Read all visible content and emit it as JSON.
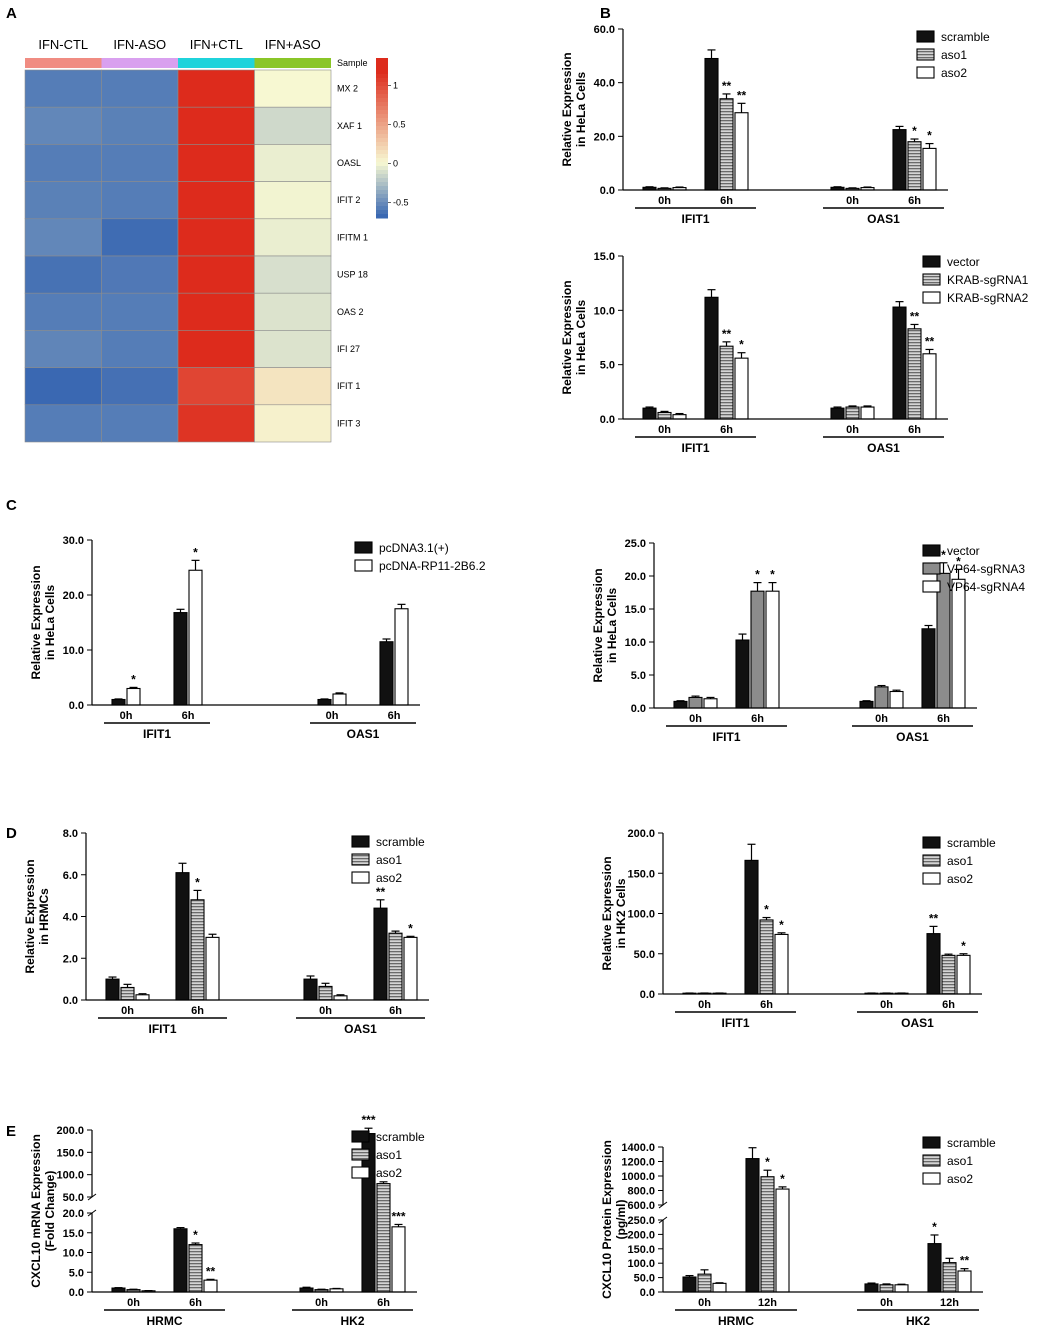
{
  "palette": {
    "black": "#111111",
    "gray_hatch": "#9a9a9a",
    "white": "#ffffff",
    "heat_low": "#3a68b2",
    "heat_mid": "#f7f8d2",
    "heat_high": "#dd2b1c"
  },
  "heatmap": {
    "panel": "A",
    "columns": [
      "IFN-CTL",
      "IFN-ASO",
      "IFN+CTL",
      "IFN+ASO"
    ],
    "sample_label": "Sample",
    "sample_colors": [
      "#f08c82",
      "#d9a0ef",
      "#1fd3db",
      "#8ac628"
    ],
    "rows": [
      "MX 2",
      "XAF 1",
      "OASL",
      "IFIT 2",
      "IFITM 1",
      "USP 18",
      "OAS 2",
      "IFI 27",
      "IFIT 1",
      "IFIT 3"
    ],
    "values": [
      [
        -0.6,
        -0.6,
        1.3,
        0.0
      ],
      [
        -0.55,
        -0.58,
        1.4,
        -0.15
      ],
      [
        -0.6,
        -0.6,
        1.35,
        -0.05
      ],
      [
        -0.58,
        -0.6,
        1.3,
        -0.02
      ],
      [
        -0.55,
        -0.68,
        1.25,
        -0.05
      ],
      [
        -0.65,
        -0.62,
        1.2,
        -0.12
      ],
      [
        -0.6,
        -0.6,
        1.35,
        -0.1
      ],
      [
        -0.56,
        -0.6,
        1.3,
        -0.1
      ],
      [
        -0.7,
        -0.66,
        1.05,
        0.12
      ],
      [
        -0.6,
        -0.6,
        1.15,
        0.04
      ]
    ],
    "colorbar_ticks": [
      "1",
      "0.5",
      "0",
      "-0.5"
    ]
  },
  "chart_data": [
    {
      "panel": "B",
      "type": "bar",
      "ylabel": [
        "Relative Expression",
        "in HeLa Cells"
      ],
      "ylim": [
        0,
        60
      ],
      "yticks": [
        "0.0",
        "20.0",
        "40.0",
        "60.0"
      ],
      "groups": [
        "IFIT1",
        "OAS1"
      ],
      "timepoints": [
        "0h",
        "6h",
        "0h",
        "6h"
      ],
      "series": [
        {
          "name": "scramble",
          "style": "black",
          "values": [
            1.0,
            49.0,
            1.0,
            22.5
          ],
          "errors": [
            0.2,
            3.2,
            0.2,
            1.2
          ]
        },
        {
          "name": "aso1",
          "style": "hatch",
          "values": [
            0.6,
            34.0,
            0.6,
            18.0
          ],
          "errors": [
            0.2,
            1.8,
            0.2,
            1.0
          ]
        },
        {
          "name": "aso2",
          "style": "white",
          "values": [
            0.9,
            28.8,
            0.9,
            15.5
          ],
          "errors": [
            0.2,
            3.5,
            0.2,
            1.8
          ]
        }
      ],
      "annotations": [
        "",
        "",
        "",
        "",
        "**",
        "**",
        "",
        "",
        "",
        "",
        "*",
        "*"
      ]
    },
    {
      "panel": "",
      "type": "bar",
      "ylabel": [
        "Relative Expression",
        "in HeLa Cells"
      ],
      "ylim": [
        0,
        15
      ],
      "yticks": [
        "0.0",
        "5.0",
        "10.0",
        "15.0"
      ],
      "groups": [
        "IFIT1",
        "OAS1"
      ],
      "timepoints": [
        "0h",
        "6h",
        "0h",
        "6h"
      ],
      "series": [
        {
          "name": "vector",
          "style": "black",
          "values": [
            1.0,
            11.2,
            1.0,
            10.3
          ],
          "errors": [
            0.1,
            0.7,
            0.1,
            0.5
          ]
        },
        {
          "name": "KRAB-sgRNA1",
          "style": "hatch",
          "values": [
            0.6,
            6.7,
            1.1,
            8.3
          ],
          "errors": [
            0.1,
            0.4,
            0.1,
            0.4
          ]
        },
        {
          "name": "KRAB-sgRNA2",
          "style": "white",
          "values": [
            0.4,
            5.6,
            1.1,
            6.0
          ],
          "errors": [
            0.1,
            0.5,
            0.1,
            0.4
          ]
        }
      ],
      "annotations": [
        "",
        "",
        "",
        "",
        "**",
        "*",
        "",
        "",
        "",
        "",
        "**",
        "**"
      ]
    },
    {
      "panel": "C",
      "type": "bar",
      "ylabel": [
        "Relative Expression",
        "in HeLa Cells"
      ],
      "ylim": [
        0,
        30
      ],
      "yticks": [
        "0.0",
        "10.0",
        "20.0",
        "30.0"
      ],
      "groups": [
        "IFIT1",
        "OAS1"
      ],
      "timepoints": [
        "0h",
        "6h",
        "0h",
        "6h"
      ],
      "series": [
        {
          "name": "pcDNA3.1(+)",
          "style": "black",
          "values": [
            1.0,
            16.8,
            1.0,
            11.5
          ],
          "errors": [
            0.1,
            0.6,
            0.1,
            0.5
          ]
        },
        {
          "name": "pcDNA-RP11-2B6.2",
          "style": "white",
          "values": [
            3.0,
            24.5,
            2.0,
            17.5
          ],
          "errors": [
            0.2,
            1.8,
            0.2,
            0.8
          ]
        }
      ],
      "annotations": [
        "",
        "*",
        "",
        "*"
      ]
    },
    {
      "panel": "",
      "type": "bar",
      "ylabel": [
        "Relative Expression",
        "in HeLa Cells"
      ],
      "ylim": [
        0,
        25
      ],
      "yticks": [
        "0.0",
        "5.0",
        "10.0",
        "15.0",
        "20.0",
        "25.0"
      ],
      "groups": [
        "IFIT1",
        "OAS1"
      ],
      "timepoints": [
        "0h",
        "6h",
        "0h",
        "6h"
      ],
      "series": [
        {
          "name": "vector",
          "style": "black",
          "values": [
            1.0,
            10.3,
            1.0,
            12.0
          ],
          "errors": [
            0.1,
            0.9,
            0.1,
            0.5
          ]
        },
        {
          "name": "VP64-sgRNA3",
          "style": "gray",
          "values": [
            1.6,
            17.7,
            3.2,
            20.4
          ],
          "errors": [
            0.2,
            1.3,
            0.2,
            1.6
          ]
        },
        {
          "name": "VP64-sgRNA4",
          "style": "white",
          "values": [
            1.4,
            17.7,
            2.5,
            19.5
          ],
          "errors": [
            0.2,
            1.3,
            0.2,
            1.5
          ]
        }
      ],
      "annotations": [
        "",
        "",
        "",
        "",
        "*",
        "*",
        "",
        "",
        "",
        "",
        "*",
        "*"
      ]
    },
    {
      "panel": "D",
      "type": "bar",
      "ylabel": [
        "Relative Expression",
        "in HRMCs"
      ],
      "ylim": [
        0,
        8
      ],
      "yticks": [
        "0.0",
        "2.0",
        "4.0",
        "6.0",
        "8.0"
      ],
      "groups": [
        "IFIT1",
        "OAS1"
      ],
      "timepoints": [
        "0h",
        "6h",
        "0h",
        "6h"
      ],
      "series": [
        {
          "name": "scramble",
          "style": "black",
          "values": [
            1.0,
            6.1,
            1.0,
            4.4
          ],
          "errors": [
            0.1,
            0.45,
            0.15,
            0.4
          ]
        },
        {
          "name": "aso1",
          "style": "hatch",
          "values": [
            0.6,
            4.8,
            0.65,
            3.2
          ],
          "errors": [
            0.15,
            0.45,
            0.15,
            0.1
          ]
        },
        {
          "name": "aso2",
          "style": "white",
          "values": [
            0.25,
            3.0,
            0.2,
            3.0
          ],
          "errors": [
            0.05,
            0.15,
            0.05,
            0.05
          ]
        }
      ],
      "annotations": [
        "",
        "",
        "",
        "",
        "*",
        "",
        "",
        "",
        "",
        "**",
        "",
        "*"
      ]
    },
    {
      "panel": "",
      "type": "bar",
      "ylabel": [
        "Relative Expression",
        "in HK2 Cells"
      ],
      "ylim": [
        0,
        200
      ],
      "yticks": [
        "0.0",
        "50.0",
        "100.0",
        "150.0",
        "200.0"
      ],
      "groups": [
        "IFIT1",
        "OAS1"
      ],
      "timepoints": [
        "0h",
        "6h",
        "0h",
        "6h"
      ],
      "series": [
        {
          "name": "scramble",
          "style": "black",
          "values": [
            1.0,
            166.0,
            1.0,
            75.0
          ],
          "errors": [
            0.2,
            20.0,
            0.2,
            9.0
          ]
        },
        {
          "name": "aso1",
          "style": "hatch",
          "values": [
            1.0,
            92.0,
            1.0,
            48.0
          ],
          "errors": [
            0.2,
            3.0,
            0.2,
            1.5
          ]
        },
        {
          "name": "aso2",
          "style": "white",
          "values": [
            1.0,
            74.0,
            1.0,
            48.0
          ],
          "errors": [
            0.2,
            2.0,
            0.2,
            2.0
          ]
        }
      ],
      "annotations": [
        "",
        "",
        "",
        "",
        "*",
        "*",
        "",
        "",
        "",
        "**",
        "",
        "*"
      ]
    },
    {
      "panel": "E",
      "type": "bar",
      "ylabel": [
        "CXCL10 mRNA Expression",
        "(Fold Change)"
      ],
      "broken_axis": true,
      "upper_ylim": [
        50,
        200
      ],
      "upper_yticks": [
        "50.0",
        "100.0",
        "150.0",
        "200.0"
      ],
      "lower_ylim": [
        0,
        20
      ],
      "lower_yticks": [
        "0.0",
        "5.0",
        "10.0",
        "15.0",
        "20.0"
      ],
      "groups": [
        "HRMC",
        "HK2"
      ],
      "timepoints": [
        "0h",
        "6h",
        "0h",
        "6h"
      ],
      "series": [
        {
          "name": "scramble",
          "style": "black",
          "values": [
            1.0,
            16.0,
            1.0,
            192.0
          ],
          "errors": [
            0.1,
            0.3,
            0.2,
            12.0
          ]
        },
        {
          "name": "aso1",
          "style": "hatch",
          "values": [
            0.6,
            12.0,
            0.6,
            80.0
          ],
          "errors": [
            0.1,
            0.4,
            0.1,
            4.0
          ]
        },
        {
          "name": "aso2",
          "style": "white",
          "values": [
            0.3,
            3.0,
            0.8,
            16.5
          ],
          "errors": [
            0.05,
            0.2,
            0.1,
            0.6
          ]
        }
      ],
      "annotations": [
        "",
        "",
        "",
        "",
        "*",
        "**",
        "",
        "",
        "",
        "***",
        "",
        "***"
      ]
    },
    {
      "panel": "",
      "type": "bar",
      "ylabel": [
        "CXCL10 Protein Expression",
        "(pg/ml)"
      ],
      "broken_axis": true,
      "upper_ylim": [
        600,
        1400
      ],
      "upper_yticks": [
        "600.0",
        "800.0",
        "1000.0",
        "1200.0",
        "1400.0"
      ],
      "lower_ylim": [
        0,
        250
      ],
      "lower_yticks": [
        "0.0",
        "50.0",
        "100.0",
        "150.0",
        "200.0",
        "250.0"
      ],
      "groups": [
        "HRMC",
        "HK2"
      ],
      "timepoints": [
        "0h",
        "12h",
        "0h",
        "12h"
      ],
      "series": [
        {
          "name": "scramble",
          "style": "black",
          "values": [
            52.0,
            1240.0,
            28.0,
            168.0
          ],
          "errors": [
            5.0,
            150.0,
            3.0,
            30.0
          ]
        },
        {
          "name": "aso1",
          "style": "hatch",
          "values": [
            62.0,
            990.0,
            25.0,
            102.0
          ],
          "errors": [
            15.0,
            90.0,
            3.0,
            15.0
          ]
        },
        {
          "name": "aso2",
          "style": "white",
          "values": [
            30.0,
            820.0,
            25.0,
            73.0
          ],
          "errors": [
            2.0,
            30.0,
            2.0,
            8.0
          ]
        }
      ],
      "annotations": [
        "",
        "",
        "",
        "",
        "*",
        "*",
        "",
        "",
        "",
        "*",
        "",
        "**"
      ]
    }
  ]
}
